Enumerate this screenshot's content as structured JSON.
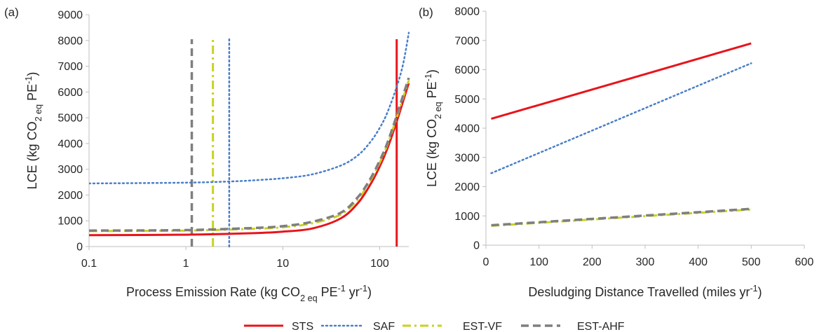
{
  "colors": {
    "STS": "#e8141b",
    "SAF": "#4a7ec8",
    "EST-VF": "#c8d21f",
    "EST-AHF": "#7f7f7f",
    "axis": "#bfbfbf"
  },
  "legend": [
    {
      "name": "STS",
      "style": "solid"
    },
    {
      "name": "SAF",
      "style": "dotted"
    },
    {
      "name": "EST-VF",
      "style": "dashdot"
    },
    {
      "name": "EST-AHF",
      "style": "dashed"
    }
  ],
  "chart_data": [
    {
      "panel_label": "(a)",
      "type": "line",
      "xscale": "log",
      "xlabel": {
        "pre": "Process Emission Rate (kg CO",
        "sub": "2 eq",
        "mid": " PE",
        "sup": "-1",
        "post": " yr",
        "sup2": "-1",
        "end": ")"
      },
      "ylabel": {
        "pre": "LCE (kg CO",
        "sub": "2 eq",
        "mid": " PE",
        "sup": "-1",
        "end": ")"
      },
      "xlim": [
        0.1,
        200
      ],
      "ylim": [
        0,
        9000
      ],
      "xticks": [
        0.1,
        1,
        10,
        100
      ],
      "xtick_labels": [
        "0.1",
        "1",
        "10",
        "100"
      ],
      "yticks": [
        0,
        1000,
        2000,
        3000,
        4000,
        5000,
        6000,
        7000,
        8000,
        9000
      ],
      "ytick_labels": [
        "0",
        "1000",
        "2000",
        "3000",
        "4000",
        "5000",
        "6000",
        "7000",
        "8000",
        "9000"
      ],
      "series": [
        {
          "name": "STS",
          "x": [
            0.1,
            1,
            5,
            10,
            20,
            40,
            60,
            80,
            100,
            120,
            150,
            170,
            200
          ],
          "y": [
            440,
            460,
            520,
            580,
            700,
            1100,
            1700,
            2400,
            3100,
            3800,
            4850,
            5500,
            6350
          ]
        },
        {
          "name": "SAF",
          "x": [
            0.1,
            1,
            3,
            5,
            10,
            20,
            40,
            60,
            80,
            100,
            120,
            150,
            175,
            200
          ],
          "y": [
            2450,
            2480,
            2530,
            2570,
            2650,
            2800,
            3150,
            3550,
            4050,
            4600,
            5200,
            6200,
            7100,
            8300
          ]
        },
        {
          "name": "EST-VF",
          "x": [
            0.1,
            1,
            5,
            10,
            20,
            40,
            60,
            80,
            100,
            120,
            150,
            170,
            200
          ],
          "y": [
            600,
            620,
            690,
            750,
            900,
            1250,
            1850,
            2550,
            3250,
            3950,
            5000,
            5650,
            6450
          ]
        },
        {
          "name": "EST-AHF",
          "x": [
            0.1,
            1,
            5,
            10,
            20,
            40,
            60,
            80,
            100,
            120,
            150,
            170,
            200
          ],
          "y": [
            620,
            640,
            720,
            790,
            960,
            1320,
            1930,
            2620,
            3330,
            4020,
            5080,
            5730,
            6550
          ]
        }
      ],
      "vlines": [
        {
          "name": "STS",
          "x": 150,
          "y0": 0,
          "y1": 8050
        },
        {
          "name": "SAF",
          "x": 2.8,
          "y0": 0,
          "y1": 8050
        },
        {
          "name": "EST-VF",
          "x": 1.9,
          "y0": 0,
          "y1": 8050
        },
        {
          "name": "EST-AHF",
          "x": 1.15,
          "y0": 0,
          "y1": 8050
        }
      ]
    },
    {
      "panel_label": "(b)",
      "type": "line",
      "xscale": "linear",
      "xlabel": {
        "pre": "Desludging Distance Travelled (miles yr",
        "sup": "-1",
        "end": ")"
      },
      "ylabel": {
        "pre": "LCE (kg CO",
        "sub": "2 eq",
        "mid": " PE",
        "sup": "-1",
        "end": ")"
      },
      "xlim": [
        0,
        600
      ],
      "ylim": [
        0,
        8000
      ],
      "xticks": [
        0,
        100,
        200,
        300,
        400,
        500,
        600
      ],
      "xtick_labels": [
        "0",
        "100",
        "200",
        "300",
        "400",
        "500",
        "600"
      ],
      "yticks": [
        0,
        1000,
        2000,
        3000,
        4000,
        5000,
        6000,
        7000,
        8000
      ],
      "ytick_labels": [
        "0",
        "1000",
        "2000",
        "3000",
        "4000",
        "5000",
        "6000",
        "7000",
        "8000"
      ],
      "series": [
        {
          "name": "STS",
          "x": [
            10,
            500
          ],
          "y": [
            4320,
            6900
          ]
        },
        {
          "name": "SAF",
          "x": [
            10,
            500
          ],
          "y": [
            2460,
            6220
          ]
        },
        {
          "name": "EST-VF",
          "x": [
            10,
            500
          ],
          "y": [
            660,
            1220
          ]
        },
        {
          "name": "EST-AHF",
          "x": [
            10,
            500
          ],
          "y": [
            680,
            1240
          ]
        }
      ]
    }
  ]
}
